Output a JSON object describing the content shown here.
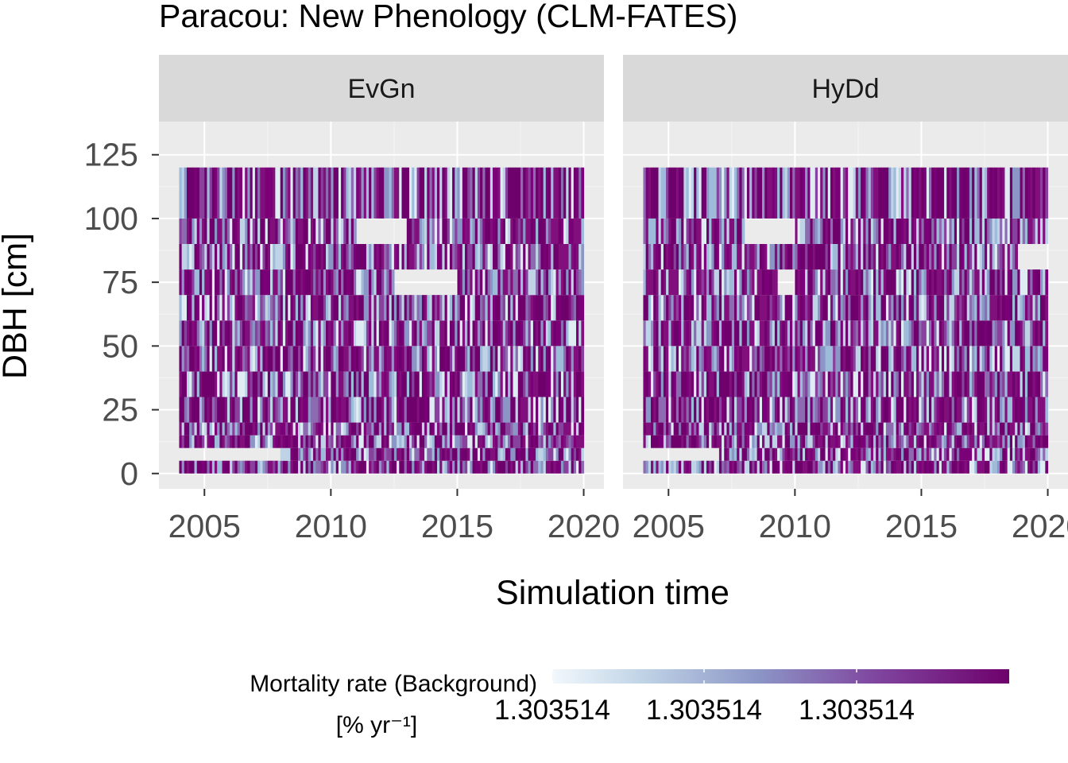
{
  "chart_data": {
    "type": "heatmap",
    "title": "Paracou: New Phenology (CLM-FATES)",
    "xlabel": "Simulation time",
    "ylabel": "DBH [cm]",
    "x_ticks": [
      "2005",
      "2010",
      "2015",
      "2020"
    ],
    "y_ticks": [
      "0",
      "25",
      "50",
      "75",
      "100",
      "125"
    ],
    "xlim": [
      2003.2,
      2020.8
    ],
    "ylim": [
      -6,
      138
    ],
    "x_data_range": [
      2004.0,
      2020.0
    ],
    "dbh_bins": [
      [
        0,
        5
      ],
      [
        5,
        10
      ],
      [
        10,
        15
      ],
      [
        15,
        20
      ],
      [
        20,
        30
      ],
      [
        30,
        40
      ],
      [
        40,
        50
      ],
      [
        50,
        60
      ],
      [
        60,
        70
      ],
      [
        70,
        80
      ],
      [
        80,
        90
      ],
      [
        90,
        100
      ],
      [
        100,
        120
      ]
    ],
    "color_scale": {
      "title_line1": "Mortality rate (Background)",
      "title_line2": "[% yr⁻¹]",
      "tick_labels": [
        "1.303514",
        "1.303514",
        "1.303514"
      ],
      "low_color": "#f2f8fc",
      "mid_color": "#8c96c6",
      "high_color": "#6e016b"
    },
    "facets": [
      {
        "label": "EvGn",
        "missing_cells": [
          {
            "dbh_bin": [
              5,
              10
            ],
            "x_range": [
              2004.0,
              2008.0
            ]
          },
          {
            "dbh_bin": [
              90,
              100
            ],
            "x_range": [
              2011.0,
              2013.0
            ]
          },
          {
            "dbh_bin": [
              70,
              80
            ],
            "x_range": [
              2012.5,
              2015.0
            ]
          }
        ]
      },
      {
        "label": "HyDd",
        "missing_cells": [
          {
            "dbh_bin": [
              5,
              10
            ],
            "x_range": [
              2004.0,
              2007.0
            ]
          },
          {
            "dbh_bin": [
              90,
              100
            ],
            "x_range": [
              2008.0,
              2010.0
            ]
          },
          {
            "dbh_bin": [
              70,
              80
            ],
            "x_range": [
              2009.3,
              2010.0
            ]
          },
          {
            "dbh_bin": [
              80,
              90
            ],
            "x_range": [
              2018.8,
              2020.0
            ]
          }
        ]
      }
    ],
    "grid": true,
    "legend_position": "bottom"
  }
}
